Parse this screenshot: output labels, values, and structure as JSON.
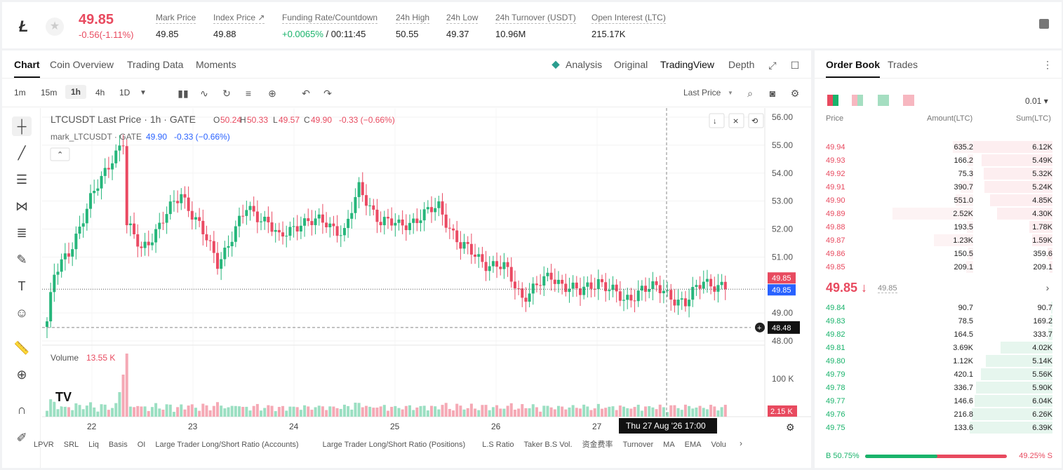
{
  "ticker": {
    "price": "49.85",
    "change": "-0.56(-1.11%)",
    "stats": [
      {
        "label": "Mark Price",
        "value": "49.85"
      },
      {
        "label": "Index Price ↗",
        "value": "49.88"
      },
      {
        "label": "Funding Rate/Countdown",
        "value_g": "+0.0065%",
        "value": " / 00:11:45"
      },
      {
        "label": "24h High",
        "value": "50.55"
      },
      {
        "label": "24h Low",
        "value": "49.37"
      },
      {
        "label": "24h Turnover (USDT)",
        "value": "10.96M"
      },
      {
        "label": "Open Interest (LTC)",
        "value": "215.17K"
      }
    ]
  },
  "left_tabs": [
    "Chart",
    "Coin Overview",
    "Trading Data",
    "Moments"
  ],
  "chart_modes": [
    "Analysis",
    "Original",
    "TradingView",
    "Depth"
  ],
  "timeframes": [
    "1m",
    "15m",
    "1h",
    "4h",
    "1D"
  ],
  "price_type": "Last Price",
  "legend": {
    "title": "LTCUSDT Last Price · 1h · GATE",
    "o": "50.24",
    "h": "50.33",
    "l": "49.57",
    "c": "49.90",
    "chg": "-0.33 (−0.66%)",
    "mark_label": "mark_LTCUSDT · GATE",
    "mark_val": "49.90",
    "mark_chg": "-0.33 (−0.66%)",
    "vol_label": "Volume",
    "vol_val": "13.55 K"
  },
  "chart_data": {
    "type": "candlestick",
    "symbol": "LTCUSDT",
    "interval": "1h",
    "y_ticks": [
      "56.00",
      "55.00",
      "54.00",
      "53.00",
      "52.00",
      "51.00",
      "49.00",
      "48.00"
    ],
    "ylim": [
      48,
      56
    ],
    "x_ticks": [
      "22",
      "23",
      "24",
      "25",
      "26",
      "27"
    ],
    "last_price": "49.85",
    "mark_price": "49.85",
    "crosshair_price": "48.48",
    "crosshair_time": "Thu 27 Aug '26   17:00",
    "volume_ticks": [
      "100 K"
    ],
    "last_volume": "2.15 K",
    "close_anchors": [
      [
        0,
        48.7
      ],
      [
        2,
        50.3
      ],
      [
        6,
        51.2
      ],
      [
        12,
        53.0
      ],
      [
        18,
        54.6
      ],
      [
        21,
        55.1
      ],
      [
        22,
        52.1
      ],
      [
        26,
        51.3
      ],
      [
        31,
        52.1
      ],
      [
        37,
        53.3
      ],
      [
        42,
        52.1
      ],
      [
        47,
        50.8
      ],
      [
        55,
        52.7
      ],
      [
        61,
        52.3
      ],
      [
        64,
        51.6
      ],
      [
        70,
        52.3
      ],
      [
        77,
        52.2
      ],
      [
        82,
        51.9
      ],
      [
        86,
        53.4
      ],
      [
        92,
        52.3
      ],
      [
        97,
        52.1
      ],
      [
        104,
        52.5
      ],
      [
        108,
        52.8
      ],
      [
        114,
        51.4
      ],
      [
        121,
        50.8
      ],
      [
        126,
        50.6
      ],
      [
        131,
        49.6
      ],
      [
        139,
        50.3
      ],
      [
        147,
        49.7
      ],
      [
        152,
        50.2
      ],
      [
        159,
        49.4
      ],
      [
        164,
        49.9
      ],
      [
        170,
        49.8
      ],
      [
        176,
        49.3
      ],
      [
        181,
        50.2
      ],
      [
        187,
        49.85
      ]
    ]
  },
  "orderbook": {
    "tabs": [
      "Order Book",
      "Trades"
    ],
    "precision": "0.01 ▾",
    "headers": [
      "Price",
      "Amount(LTC)",
      "Sum(LTC)"
    ],
    "asks": [
      [
        "49.94",
        "635.2",
        "6.12K"
      ],
      [
        "49.93",
        "166.2",
        "5.49K"
      ],
      [
        "49.92",
        "75.3",
        "5.32K"
      ],
      [
        "49.91",
        "390.7",
        "5.24K"
      ],
      [
        "49.90",
        "551.0",
        "4.85K"
      ],
      [
        "49.89",
        "2.52K",
        "4.30K"
      ],
      [
        "49.88",
        "193.5",
        "1.78K"
      ],
      [
        "49.87",
        "1.23K",
        "1.59K"
      ],
      [
        "49.86",
        "150.5",
        "359.6"
      ],
      [
        "49.85",
        "209.1",
        "209.1"
      ]
    ],
    "ask_sum": [
      6.12,
      5.49,
      5.32,
      5.24,
      4.85,
      4.3,
      1.78,
      1.59,
      0.3596,
      0.2091
    ],
    "ask_amt": [
      0.6352,
      0.1662,
      0.0753,
      0.3907,
      0.551,
      2.52,
      0.1935,
      1.23,
      0.1505,
      0.2091
    ],
    "mid_price": "49.85 ↓",
    "mid_mark": "49.85",
    "bids": [
      [
        "49.84",
        "90.7",
        "90.7"
      ],
      [
        "49.83",
        "78.5",
        "169.2"
      ],
      [
        "49.82",
        "164.5",
        "333.7"
      ],
      [
        "49.81",
        "3.69K",
        "4.02K"
      ],
      [
        "49.80",
        "1.12K",
        "5.14K"
      ],
      [
        "49.79",
        "420.1",
        "5.56K"
      ],
      [
        "49.78",
        "336.7",
        "5.90K"
      ],
      [
        "49.77",
        "146.6",
        "6.04K"
      ],
      [
        "49.76",
        "216.8",
        "6.26K"
      ],
      [
        "49.75",
        "133.6",
        "6.39K"
      ]
    ],
    "bid_sum": [
      0.0907,
      0.1692,
      0.3337,
      4.02,
      5.14,
      5.56,
      5.9,
      6.04,
      6.26,
      6.39
    ],
    "buy_ratio": "B 50.75%",
    "sell_ratio": "49.25% S",
    "buy_pct": 50.75
  },
  "bottom_tabs": [
    "LPVR",
    "SRL",
    "Liq",
    "Basis",
    "OI",
    "Large Trader Long/Short Ratio (Accounts)",
    "Large Trader Long/Short Ratio (Positions)",
    "L.S Ratio",
    "Taker B.S Vol.",
    "资金费率",
    "Turnover",
    "MA",
    "EMA",
    "Volu"
  ]
}
